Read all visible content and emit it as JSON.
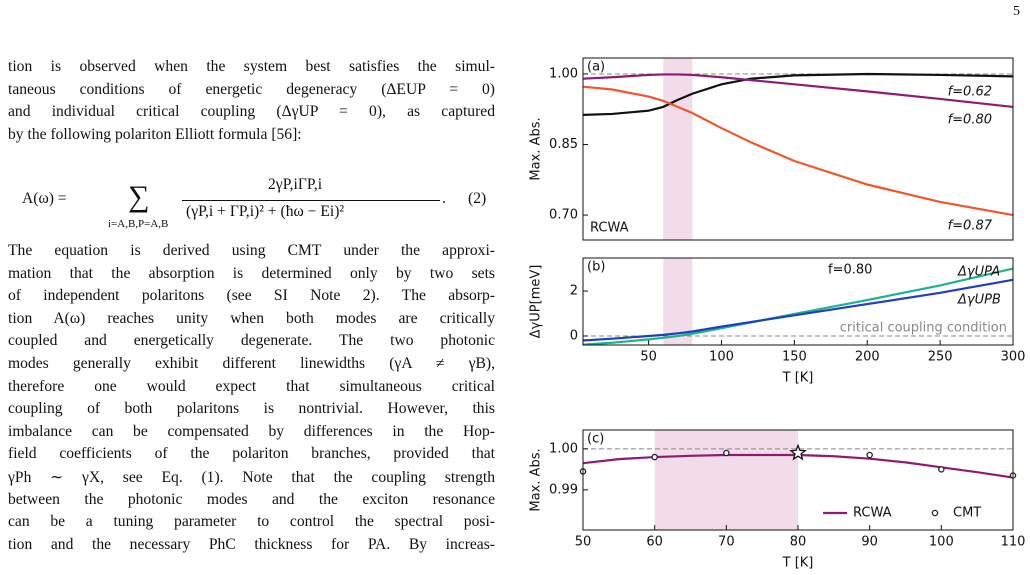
{
  "page_number": "5",
  "text_before": [
    "tion is observed when the system best satisfies the simul-",
    "taneous conditions of energetic degeneracy (ΔEUP = 0)",
    "and individual critical coupling (ΔγUP = 0), as captured",
    "by the following polariton Elliott formula [56]:"
  ],
  "equation": {
    "lhs": "A(ω) =",
    "sum": "∑",
    "sum_index": "i=A,B,P=A,B",
    "numerator": "2γP,iΓP,i",
    "denominator": "(γP,i + ΓP,i)² + (ħω − Ei)²",
    "end": ".",
    "number": "(2)"
  },
  "text_after": [
    "The equation is derived using CMT under the approxi-",
    "mation that the absorption is determined only by two sets",
    "of independent polaritons (see SI Note 2). The absorp-",
    "tion A(ω) reaches unity when both modes are critically",
    "coupled and energetically degenerate. The two photonic",
    "modes generally exhibit different linewidths (γA ≠ γB),",
    "therefore one would expect that simultaneous critical",
    "coupling of both polaritons is nontrivial. However, this",
    "imbalance can be compensated by differences in the Hop-",
    "field coefficients of the polariton branches, provided that",
    "γPh ∼ γX, see Eq. (1). Note that the coupling strength",
    "between the photonic modes and the exciton resonance",
    "can be a tuning parameter to control the spectral posi-",
    "tion and the necessary PhC thickness for PA. By increas-"
  ],
  "chart_data": [
    {
      "type": "line",
      "panel_label": "(a)",
      "annotations": [
        "RCWA"
      ],
      "ylabel": "Max. Abs.",
      "x": [
        5,
        25,
        50,
        60,
        70,
        80,
        100,
        120,
        150,
        200,
        250,
        300
      ],
      "series": [
        {
          "name": "f=0.62",
          "color": "#111111",
          "values": [
            0.913,
            0.915,
            0.922,
            0.93,
            0.945,
            0.958,
            0.978,
            0.99,
            0.997,
            1.0,
            0.998,
            0.995
          ]
        },
        {
          "name": "f=0.80",
          "color": "#8e1a78",
          "values": [
            0.99,
            0.993,
            0.998,
            0.999,
            0.999,
            0.998,
            0.993,
            0.987,
            0.978,
            0.963,
            0.947,
            0.93
          ]
        },
        {
          "name": "f=0.87",
          "color": "#f2552c",
          "values": [
            0.973,
            0.967,
            0.952,
            0.943,
            0.93,
            0.917,
            0.885,
            0.855,
            0.815,
            0.765,
            0.728,
            0.7
          ]
        }
      ],
      "xlim": [
        5,
        300
      ],
      "ylim": [
        0.647,
        1.034
      ],
      "yticks": [
        {
          "value": 1.0,
          "label": "1.00"
        },
        {
          "value": 0.85,
          "label": "0.85"
        },
        {
          "value": 0.7,
          "label": "0.70"
        }
      ],
      "hline": 1.0,
      "shade": [
        60,
        80
      ]
    },
    {
      "type": "line",
      "panel_label": "(b)",
      "annotations": [
        "f=0.80"
      ],
      "ylabel": "ΔγUP[meV]",
      "xlabel": "T [K]",
      "x": [
        5,
        25,
        50,
        60,
        70,
        80,
        100,
        120,
        150,
        200,
        250,
        300
      ],
      "series": [
        {
          "name": "ΔγUPA",
          "color": "#1bb48c",
          "values": [
            -0.38,
            -0.3,
            -0.15,
            -0.08,
            0.0,
            0.1,
            0.35,
            0.6,
            0.98,
            1.6,
            2.25,
            3.0
          ]
        },
        {
          "name": "ΔγUPB",
          "color": "#1f3fbf",
          "values": [
            -0.2,
            -0.12,
            0.0,
            0.05,
            0.12,
            0.2,
            0.42,
            0.62,
            0.92,
            1.42,
            1.92,
            2.5
          ]
        }
      ],
      "xlim": [
        5,
        300
      ],
      "ylim": [
        -0.4,
        3.47
      ],
      "xticks": [
        50,
        100,
        150,
        200,
        250,
        300
      ],
      "yticks": [
        0,
        2
      ],
      "hline": 0,
      "hline_label": "critical coupling condition",
      "shade": [
        60,
        80
      ]
    },
    {
      "type": "line",
      "panel_label": "(c)",
      "ylabel": "Max. Abs.",
      "xlabel": "T [K]",
      "series": [
        {
          "name": "RCWA",
          "color": "#8e1a78",
          "x": [
            50,
            55,
            60,
            65,
            70,
            75,
            80,
            85,
            90,
            95,
            100,
            105,
            110
          ],
          "values": [
            0.9965,
            0.9975,
            0.998,
            0.9983,
            0.9985,
            0.9985,
            0.9985,
            0.9982,
            0.9976,
            0.9967,
            0.9955,
            0.9943,
            0.993
          ]
        },
        {
          "name": "CMT",
          "color": "#222222",
          "style": "markers",
          "x": [
            50,
            60,
            70,
            80,
            90,
            100,
            110
          ],
          "values": [
            0.9945,
            0.998,
            0.999,
            0.999,
            0.9985,
            0.995,
            0.9935
          ]
        }
      ],
      "star": {
        "x": 80,
        "y": 0.999
      },
      "xlim": [
        50,
        110
      ],
      "ylim": [
        0.9802,
        1.0046
      ],
      "xticks": [
        50,
        60,
        70,
        80,
        90,
        100,
        110
      ],
      "yticks": [
        {
          "value": 1.0,
          "label": "1.00"
        },
        {
          "value": 0.99,
          "label": "0.99"
        }
      ],
      "hline": 1.0,
      "shade": [
        60,
        80
      ],
      "legend": "lower right"
    }
  ]
}
